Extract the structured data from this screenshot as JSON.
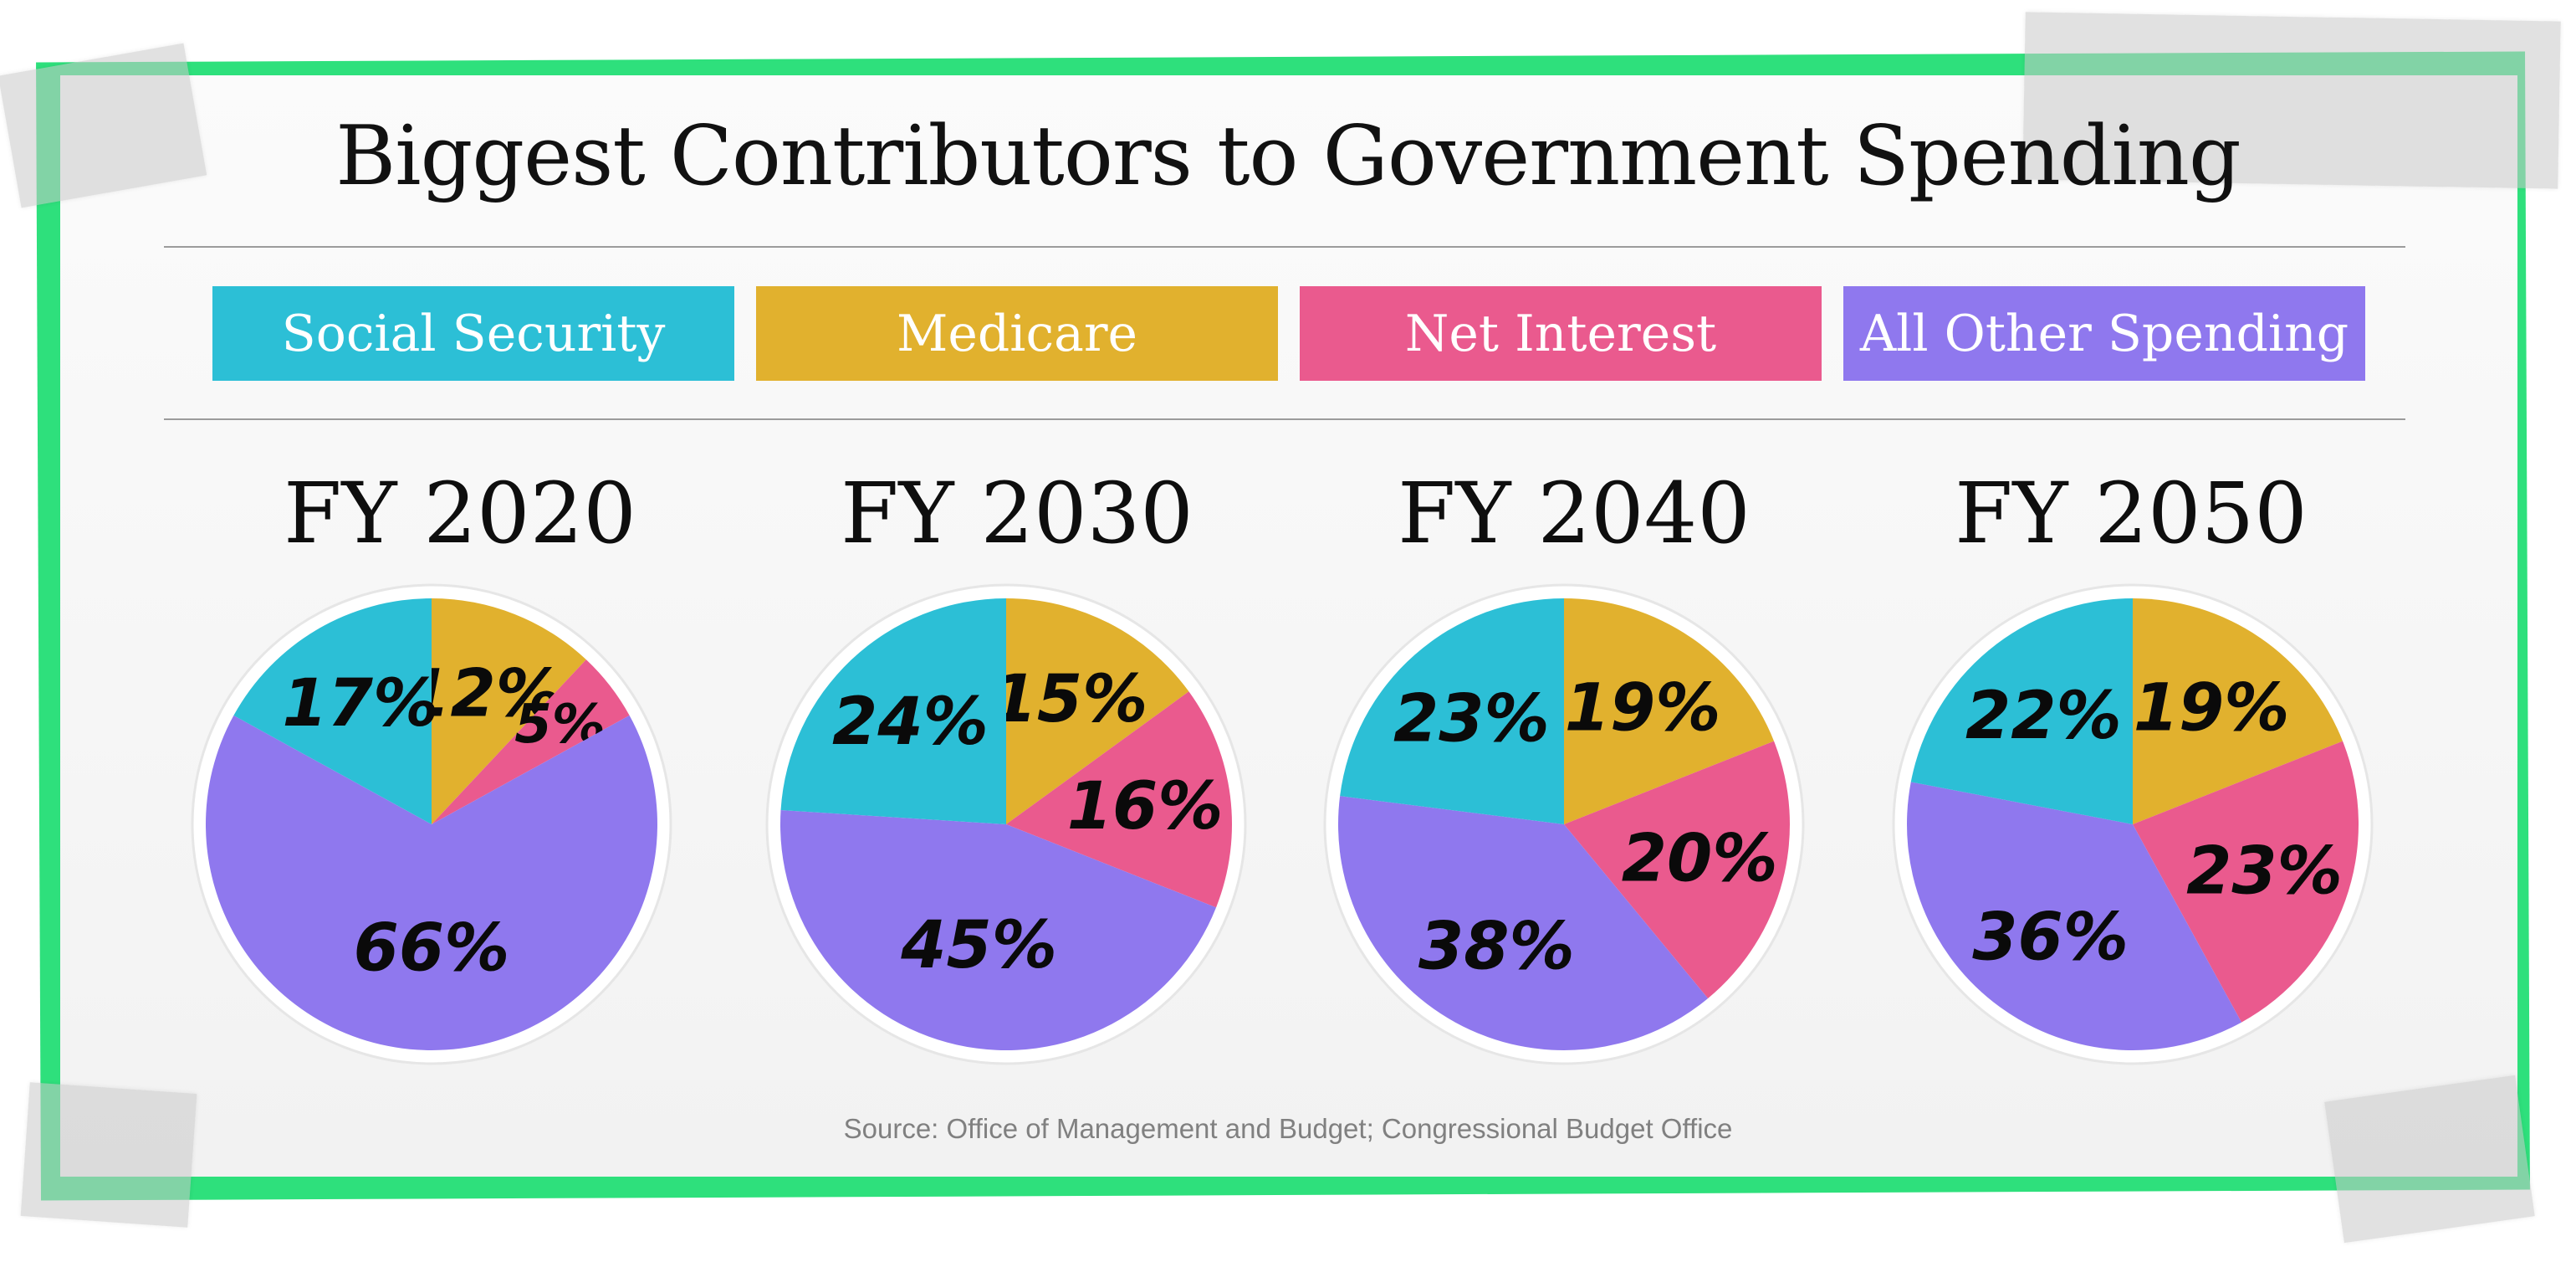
{
  "title": "Biggest Contributors to Government Spending",
  "legend": [
    {
      "label": "Social Security",
      "color": "#2cbfd6"
    },
    {
      "label": "Medicare",
      "color": "#e1b12e"
    },
    {
      "label": "Net Interest",
      "color": "#ea5a8e"
    },
    {
      "label": "All Other Spending",
      "color": "#8f78ee"
    }
  ],
  "source": "Source: Office of Management and Budget; Congressional Budget Office",
  "chart_data": [
    {
      "type": "pie",
      "title": "FY 2020",
      "categories": [
        "Social Security",
        "Medicare",
        "Net Interest",
        "All Other Spending"
      ],
      "values": [
        17,
        12,
        5,
        66
      ],
      "labels": [
        "17%",
        "12%",
        "5%",
        "66%"
      ]
    },
    {
      "type": "pie",
      "title": "FY 2030",
      "categories": [
        "Social Security",
        "Medicare",
        "Net Interest",
        "All Other Spending"
      ],
      "values": [
        24,
        15,
        16,
        45
      ],
      "labels": [
        "24%",
        "15%",
        "16%",
        "45%"
      ]
    },
    {
      "type": "pie",
      "title": "FY 2040",
      "categories": [
        "Social Security",
        "Medicare",
        "Net Interest",
        "All Other Spending"
      ],
      "values": [
        23,
        19,
        20,
        38
      ],
      "labels": [
        "23%",
        "19%",
        "20%",
        "38%"
      ]
    },
    {
      "type": "pie",
      "title": "FY 2050",
      "categories": [
        "Social Security",
        "Medicare",
        "Net Interest",
        "All Other Spending"
      ],
      "values": [
        22,
        19,
        23,
        36
      ],
      "labels": [
        "22%",
        "19%",
        "23%",
        "36%"
      ]
    }
  ]
}
